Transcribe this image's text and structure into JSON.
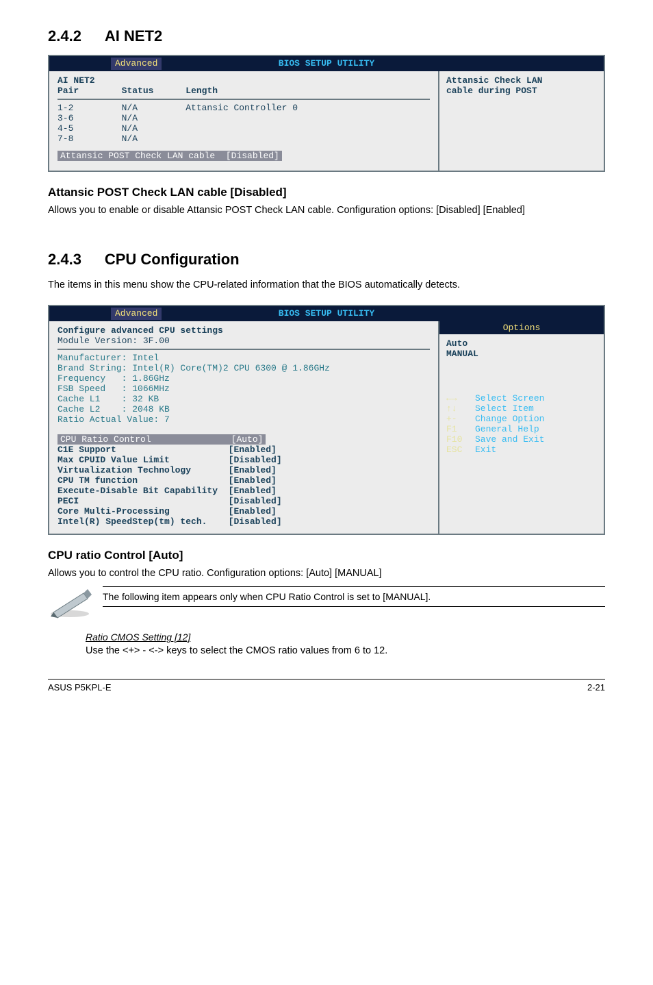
{
  "sec1": {
    "num": "2.4.2",
    "title": "AI NET2"
  },
  "bios1": {
    "banner": "BIOS SETUP UTILITY",
    "tab": "Advanced",
    "hdr_col1": "AI NET2",
    "hdr_col1b": "Pair",
    "hdr_col2": "Status",
    "hdr_col3": "Length",
    "rows": [
      {
        "pair": "1-2",
        "status": "N/A",
        "length": "Attansic Controller 0"
      },
      {
        "pair": "3-6",
        "status": "N/A",
        "length": ""
      },
      {
        "pair": "4-5",
        "status": "N/A",
        "length": ""
      },
      {
        "pair": "7-8",
        "status": "N/A",
        "length": ""
      }
    ],
    "footer_label": "Attansic POST Check LAN cable  [Disabled]",
    "right_l1": "Attansic Check LAN",
    "right_l2": "cable during POST"
  },
  "subsec1": {
    "title": "Attansic POST Check LAN cable [Disabled]",
    "body": "Allows you to enable or disable Attansic POST Check LAN cable. Configuration options: [Disabled] [Enabled]"
  },
  "sec2": {
    "num": "2.4.3",
    "title": "CPU Configuration",
    "intro": "The items in this menu show the CPU-related information that the BIOS automatically detects."
  },
  "bios2": {
    "banner": "BIOS SETUP UTILITY",
    "tab": "Advanced",
    "cfg_l1": "Configure advanced CPU settings",
    "cfg_l2": "Module Version: 3F.00",
    "info": [
      "Manufacturer: Intel",
      "Brand String: Intel(R) Core(TM)2 CPU 6300 @ 1.86GHz",
      "Frequency   : 1.86GHz",
      "FSB Speed   : 1066MHz",
      "Cache L1    : 32 KB",
      "Cache L2    : 2048 KB",
      "Ratio Actual Value: 7"
    ],
    "settings": [
      {
        "k": "CPU Ratio Control",
        "v": "[Auto]",
        "sel": true
      },
      {
        "k": "C1E Support",
        "v": "[Enabled]"
      },
      {
        "k": "Max CPUID Value Limit",
        "v": "[Disabled]"
      },
      {
        "k": "Virtualization Technology",
        "v": "[Enabled]"
      },
      {
        "k": "CPU TM function",
        "v": "[Enabled]"
      },
      {
        "k": "Execute-Disable Bit Capability",
        "v": "[Enabled]"
      },
      {
        "k": "PECI",
        "v": "[Disabled]"
      },
      {
        "k": "Core Multi-Processing",
        "v": "[Enabled]"
      },
      {
        "k": "Intel(R) SpeedStep(tm) tech.",
        "v": "[Disabled]"
      }
    ],
    "options_header": "Options",
    "options_body_l1": "Auto",
    "options_body_l2": "MANUAL",
    "legend": [
      {
        "key": "←→",
        "txt": "Select Screen"
      },
      {
        "key": "↑↓",
        "txt": "Select Item"
      },
      {
        "key": "+-",
        "txt": "Change Option"
      },
      {
        "key": "F1",
        "txt": "General Help"
      },
      {
        "key": "F10",
        "txt": "Save and Exit"
      },
      {
        "key": "ESC",
        "txt": "Exit"
      }
    ]
  },
  "subsec2": {
    "title": "CPU ratio Control [Auto]",
    "body": "Allows you to control the CPU ratio. Configuration options: [Auto] [MANUAL]"
  },
  "note": "The following item appears only when CPU Ratio Control is set to [MANUAL].",
  "ratio": {
    "title": "Ratio CMOS Setting [12]",
    "body": "Use the <+> - <-> keys to select the CMOS ratio values from 6 to 12."
  },
  "footer": {
    "left": "ASUS P5KPL-E",
    "right": "2-21"
  },
  "style": {
    "bios_bg": "#ececec",
    "bios_border": "#6b7a82",
    "bios_banner_bg": "#0a1a3a",
    "bios_banner_fg": "#37bcf2",
    "bios_tab_bg": "#333a6b",
    "bios_tab_fg": "#f5e27a",
    "bios_text": "#1a415a",
    "bios_sel_bg": "#8a8c99",
    "label_col_width": 32
  }
}
